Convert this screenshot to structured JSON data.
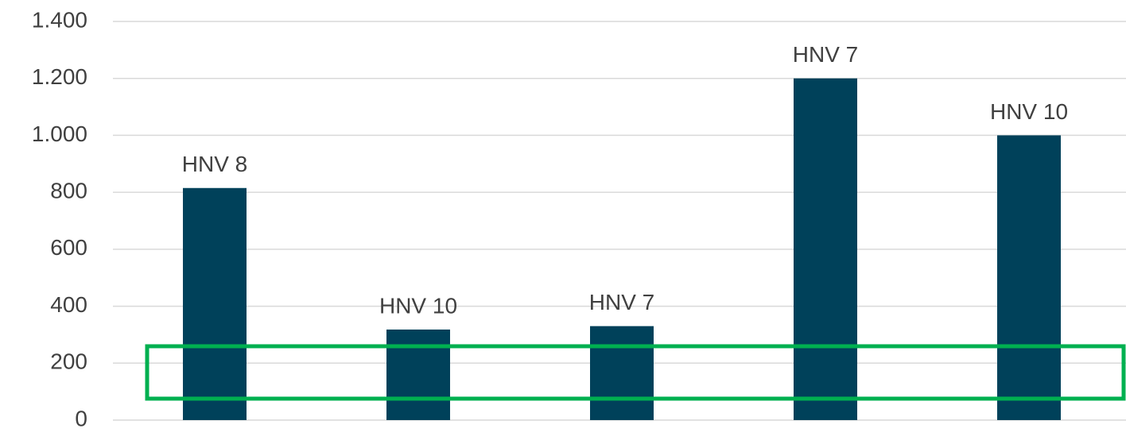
{
  "chart_data": {
    "type": "bar",
    "bar_labels": [
      "HNV 8",
      "HNV 10",
      "HNV 7",
      "HNV 7",
      "HNV 10"
    ],
    "values": [
      815,
      318,
      330,
      1200,
      1000
    ],
    "color": "#00415a",
    "ylim": [
      0,
      1400
    ],
    "yticks": [
      0,
      200,
      400,
      600,
      800,
      {
        "value": 1000,
        "label": "1.000"
      },
      {
        "value": 1200,
        "label": "1.200"
      },
      {
        "value": 1400,
        "label": "1.400"
      }
    ],
    "grid": true
  }
}
